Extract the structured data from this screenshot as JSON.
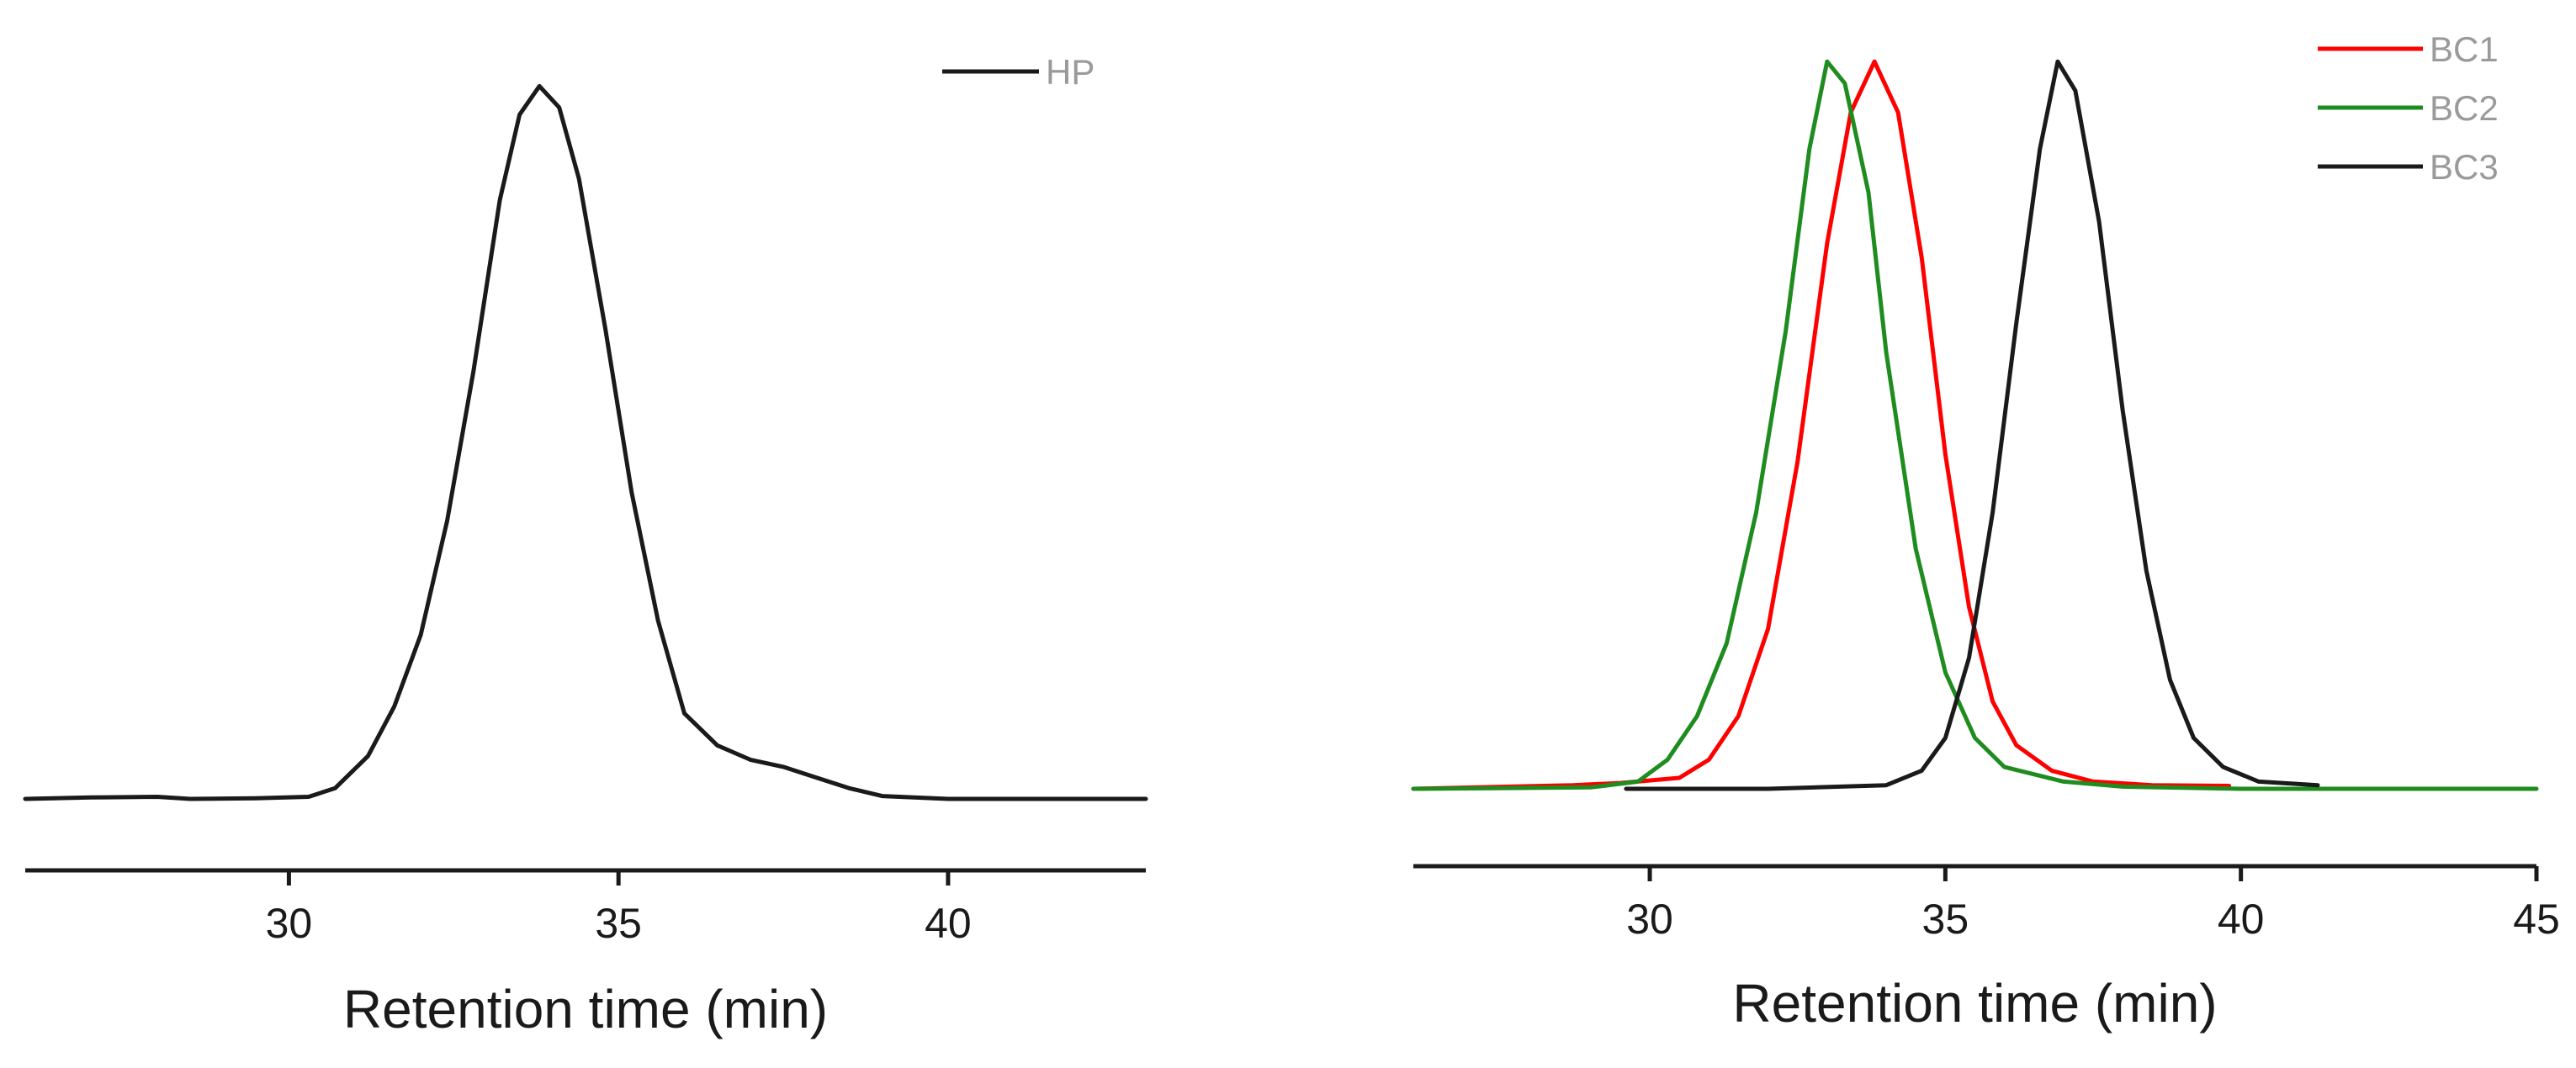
{
  "chart_data": [
    {
      "type": "line",
      "xlabel": "Retention time (min)",
      "ylabel": "",
      "xlim": [
        26,
        43
      ],
      "ylim": [
        0,
        1.05
      ],
      "xticks": [
        30,
        35,
        40
      ],
      "legend": {
        "placement": "top-right"
      },
      "series": [
        {
          "name": "HP",
          "color": "#1a1a1a",
          "points": [
            [
              26.0,
              0.0
            ],
            [
              27.0,
              0.002
            ],
            [
              28.0,
              0.003
            ],
            [
              28.5,
              0.0
            ],
            [
              29.5,
              0.001
            ],
            [
              30.3,
              0.003
            ],
            [
              30.7,
              0.015
            ],
            [
              31.2,
              0.06
            ],
            [
              31.6,
              0.13
            ],
            [
              32.0,
              0.23
            ],
            [
              32.4,
              0.39
            ],
            [
              32.8,
              0.6
            ],
            [
              33.2,
              0.84
            ],
            [
              33.5,
              0.96
            ],
            [
              33.8,
              1.0
            ],
            [
              34.1,
              0.97
            ],
            [
              34.4,
              0.87
            ],
            [
              34.8,
              0.66
            ],
            [
              35.2,
              0.43
            ],
            [
              35.6,
              0.25
            ],
            [
              36.0,
              0.12
            ],
            [
              36.5,
              0.075
            ],
            [
              37.0,
              0.055
            ],
            [
              37.5,
              0.045
            ],
            [
              38.0,
              0.03
            ],
            [
              38.5,
              0.015
            ],
            [
              39.0,
              0.004
            ],
            [
              40.0,
              0.0
            ],
            [
              41.0,
              0.0
            ],
            [
              42.0,
              0.0
            ],
            [
              43.0,
              0.0
            ]
          ]
        }
      ]
    },
    {
      "type": "line",
      "xlabel": "Retention time (min)",
      "ylabel": "",
      "xlim": [
        26,
        45
      ],
      "ylim": [
        0,
        1.05
      ],
      "xticks": [
        30,
        35,
        40,
        45
      ],
      "legend": {
        "placement": "top-right"
      },
      "series": [
        {
          "name": "BC1",
          "color": "#ff0000",
          "points": [
            [
              26.0,
              0.0
            ],
            [
              28.7,
              0.005
            ],
            [
              29.5,
              0.008
            ],
            [
              30.5,
              0.015
            ],
            [
              31.0,
              0.04
            ],
            [
              31.5,
              0.1
            ],
            [
              32.0,
              0.22
            ],
            [
              32.5,
              0.45
            ],
            [
              33.0,
              0.75
            ],
            [
              33.4,
              0.93
            ],
            [
              33.8,
              1.0
            ],
            [
              34.2,
              0.93
            ],
            [
              34.6,
              0.73
            ],
            [
              35.0,
              0.46
            ],
            [
              35.4,
              0.25
            ],
            [
              35.8,
              0.12
            ],
            [
              36.2,
              0.06
            ],
            [
              36.8,
              0.025
            ],
            [
              37.5,
              0.01
            ],
            [
              38.5,
              0.005
            ],
            [
              39.8,
              0.004
            ]
          ]
        },
        {
          "name": "BC2",
          "color": "#1e8c1e",
          "points": [
            [
              26.0,
              0.0
            ],
            [
              29.0,
              0.002
            ],
            [
              29.8,
              0.01
            ],
            [
              30.3,
              0.04
            ],
            [
              30.8,
              0.1
            ],
            [
              31.3,
              0.2
            ],
            [
              31.8,
              0.38
            ],
            [
              32.3,
              0.63
            ],
            [
              32.7,
              0.88
            ],
            [
              33.0,
              1.0
            ],
            [
              33.3,
              0.97
            ],
            [
              33.7,
              0.82
            ],
            [
              34.0,
              0.6
            ],
            [
              34.5,
              0.33
            ],
            [
              35.0,
              0.16
            ],
            [
              35.5,
              0.07
            ],
            [
              36.0,
              0.03
            ],
            [
              37.0,
              0.01
            ],
            [
              38.0,
              0.003
            ],
            [
              40.0,
              0.0
            ],
            [
              45.0,
              0.0
            ]
          ]
        },
        {
          "name": "BC3",
          "color": "#1a1a1a",
          "points": [
            [
              29.6,
              0.0
            ],
            [
              32.0,
              0.0
            ],
            [
              34.0,
              0.005
            ],
            [
              34.6,
              0.025
            ],
            [
              35.0,
              0.07
            ],
            [
              35.4,
              0.18
            ],
            [
              35.8,
              0.38
            ],
            [
              36.2,
              0.64
            ],
            [
              36.6,
              0.88
            ],
            [
              36.9,
              1.0
            ],
            [
              37.2,
              0.96
            ],
            [
              37.6,
              0.78
            ],
            [
              38.0,
              0.52
            ],
            [
              38.4,
              0.3
            ],
            [
              38.8,
              0.15
            ],
            [
              39.2,
              0.07
            ],
            [
              39.7,
              0.03
            ],
            [
              40.3,
              0.01
            ],
            [
              41.3,
              0.005
            ]
          ]
        }
      ]
    }
  ]
}
